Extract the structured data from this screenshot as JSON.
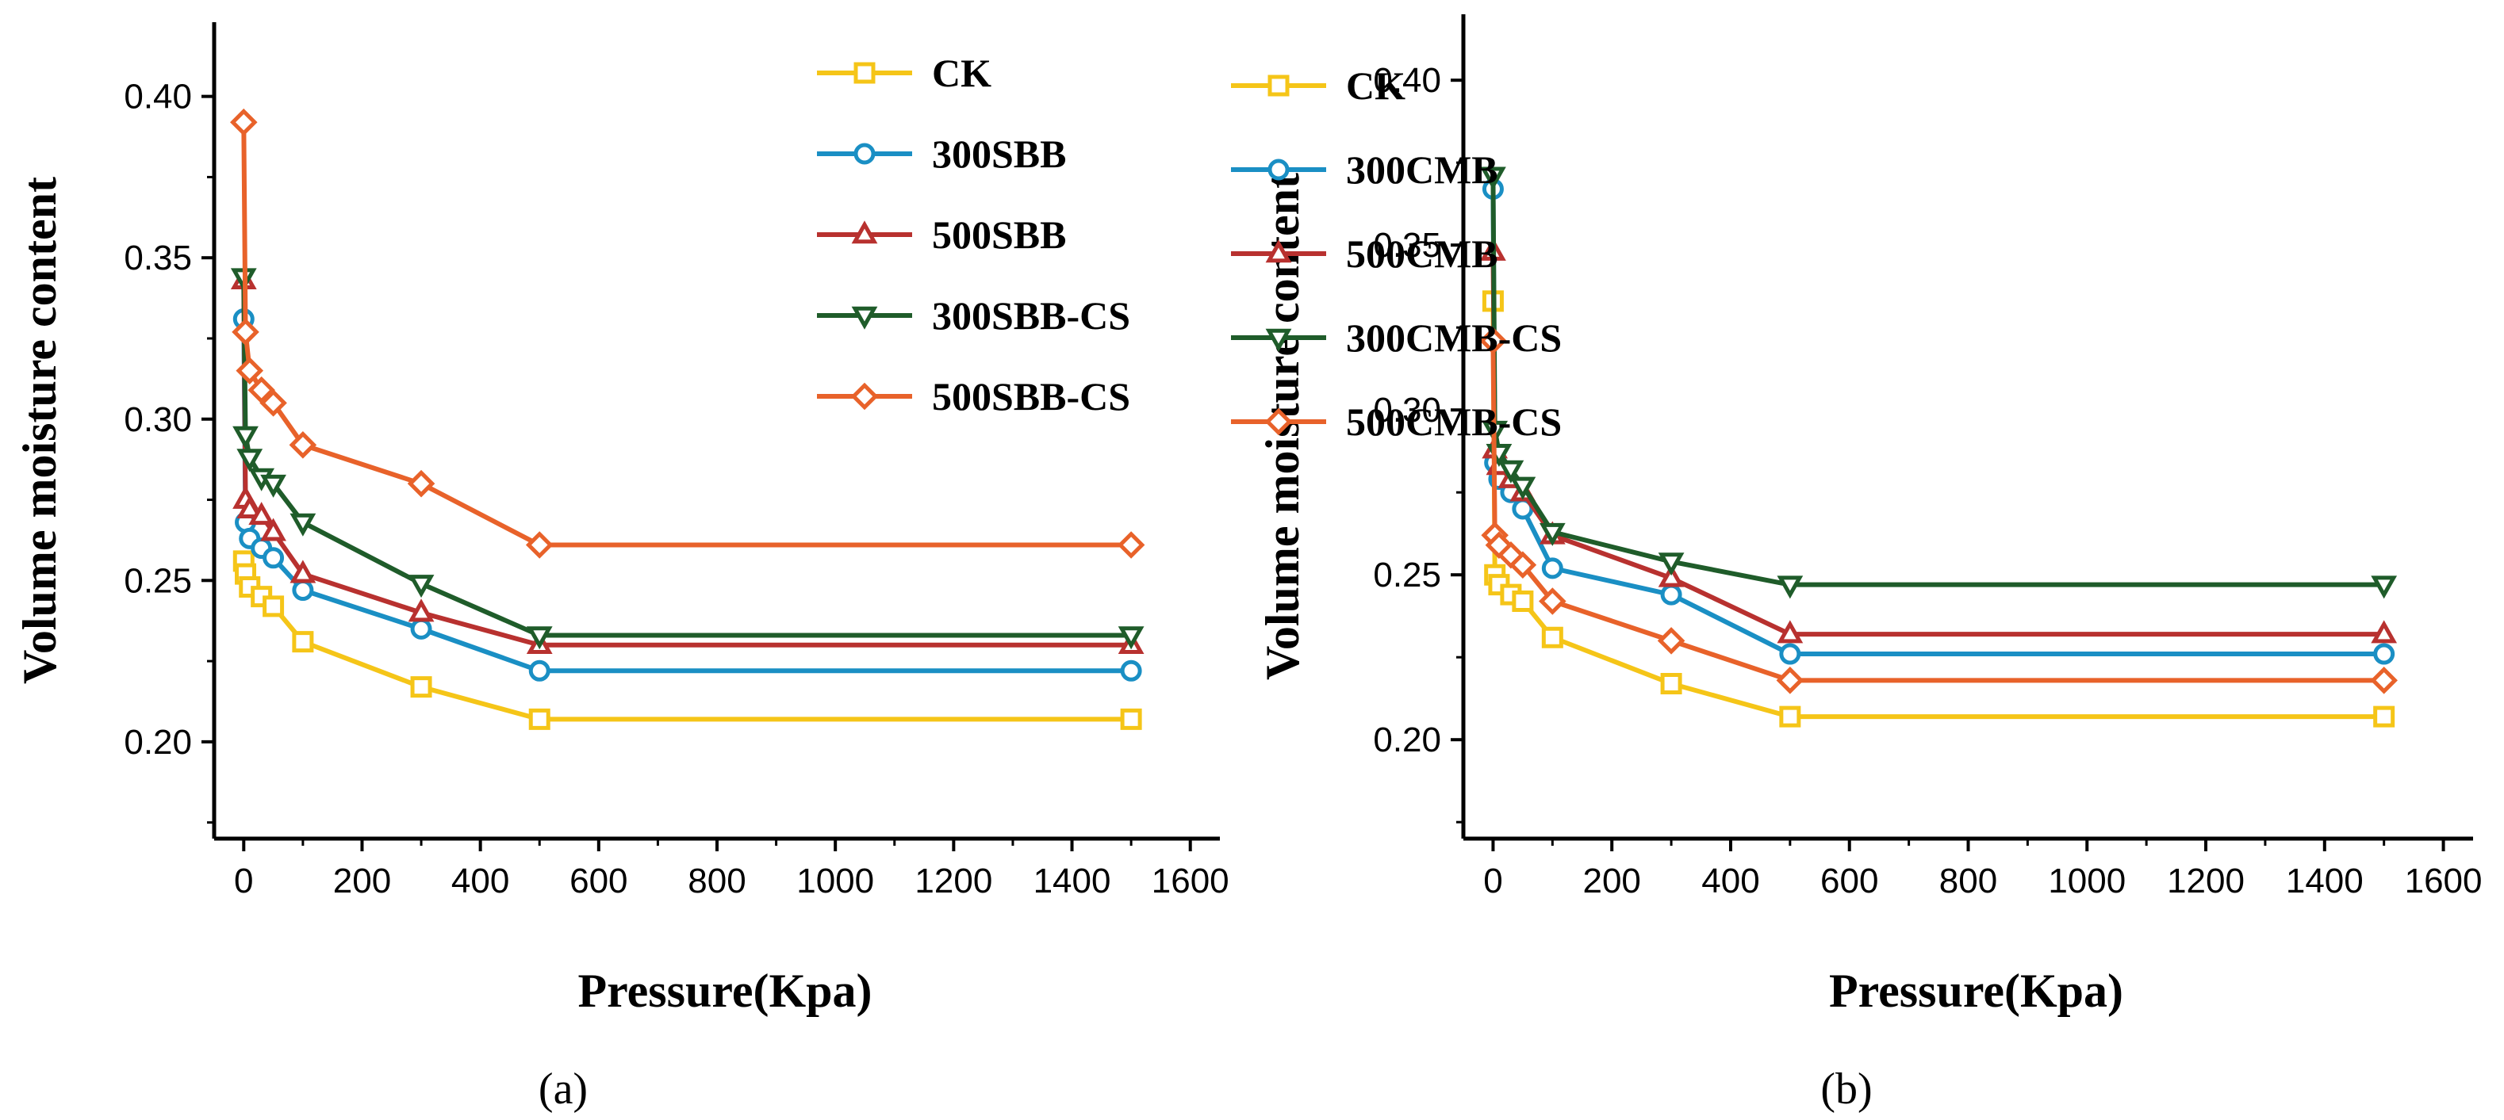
{
  "chart_data": [
    {
      "type": "line",
      "panel_label": "(a)",
      "xlabel": "Pressure(Kpa)",
      "ylabel": "Volume moisture content",
      "xlim": [
        -50,
        1650
      ],
      "ylim": [
        0.17,
        0.423
      ],
      "x_ticks": [
        0,
        200,
        400,
        600,
        800,
        1000,
        1200,
        1400,
        1600
      ],
      "x_tick_labels": [
        "0",
        "200",
        "400",
        "600",
        "800",
        "1000",
        "1200",
        "1400",
        "1600"
      ],
      "y_ticks": [
        0.2,
        0.25,
        0.3,
        0.35,
        0.4
      ],
      "y_tick_labels": [
        "0.20",
        "0.25",
        "0.30",
        "0.35",
        "0.40"
      ],
      "legend_position": "top-right",
      "x": [
        0,
        3,
        10,
        30,
        50,
        100,
        300,
        500,
        1500
      ],
      "series": [
        {
          "name": "CK",
          "color": "#f5c518",
          "marker": "square",
          "values": [
            0.256,
            0.252,
            0.248,
            0.245,
            0.242,
            0.231,
            0.217,
            0.207,
            0.207
          ]
        },
        {
          "name": "300SBB",
          "color": "#1a8fc4",
          "marker": "circle",
          "values": [
            0.331,
            0.268,
            0.263,
            0.26,
            0.257,
            0.247,
            0.235,
            0.222,
            0.222
          ]
        },
        {
          "name": "500SBB",
          "color": "#b8312f",
          "marker": "triangle-up",
          "values": [
            0.343,
            0.275,
            0.272,
            0.27,
            0.265,
            0.252,
            0.24,
            0.23,
            0.23
          ]
        },
        {
          "name": "300SBB-CS",
          "color": "#1f5c2a",
          "marker": "triangle-down",
          "values": [
            0.344,
            0.295,
            0.288,
            0.282,
            0.28,
            0.268,
            0.249,
            0.233,
            0.233
          ]
        },
        {
          "name": "500SBB-CS",
          "color": "#e8622a",
          "marker": "diamond",
          "values": [
            0.392,
            0.327,
            0.315,
            0.309,
            0.305,
            0.292,
            0.28,
            0.261,
            0.261
          ]
        }
      ]
    },
    {
      "type": "line",
      "panel_label": "(b)",
      "xlabel": "Pressure(Kpa)",
      "ylabel": "Volume moisture content",
      "xlim": [
        -50,
        1650
      ],
      "ylim": [
        0.17,
        0.42
      ],
      "x_ticks": [
        0,
        200,
        400,
        600,
        800,
        1000,
        1200,
        1400,
        1600
      ],
      "x_tick_labels": [
        "0",
        "200",
        "400",
        "600",
        "800",
        "1000",
        "1200",
        "1400",
        "1600"
      ],
      "y_ticks": [
        0.2,
        0.25,
        0.3,
        0.35,
        0.4
      ],
      "y_tick_labels": [
        "0.20",
        "0.25",
        "0.30",
        "0.35",
        "0.40"
      ],
      "legend_position": "top-right",
      "x": [
        0,
        3,
        10,
        30,
        50,
        100,
        300,
        500,
        1500
      ],
      "series": [
        {
          "name": "CK",
          "color": "#f5c518",
          "marker": "square",
          "values": [
            0.333,
            0.25,
            0.247,
            0.244,
            0.242,
            0.231,
            0.217,
            0.207,
            0.207
          ]
        },
        {
          "name": "300CMB",
          "color": "#1a8fc4",
          "marker": "circle",
          "values": [
            0.367,
            0.284,
            0.279,
            0.275,
            0.27,
            0.252,
            0.244,
            0.226,
            0.226
          ]
        },
        {
          "name": "500CMB",
          "color": "#b8312f",
          "marker": "triangle-up",
          "values": [
            0.348,
            0.288,
            0.283,
            0.279,
            0.275,
            0.262,
            0.249,
            0.232,
            0.232
          ]
        },
        {
          "name": "300CMB-CS",
          "color": "#1f5c2a",
          "marker": "triangle-down",
          "values": [
            0.371,
            0.294,
            0.287,
            0.282,
            0.277,
            0.263,
            0.254,
            0.247,
            0.247
          ]
        },
        {
          "name": "500CMB-CS",
          "color": "#e8622a",
          "marker": "diamond",
          "values": [
            0.321,
            0.262,
            0.259,
            0.256,
            0.253,
            0.242,
            0.23,
            0.218,
            0.218
          ]
        }
      ]
    }
  ]
}
